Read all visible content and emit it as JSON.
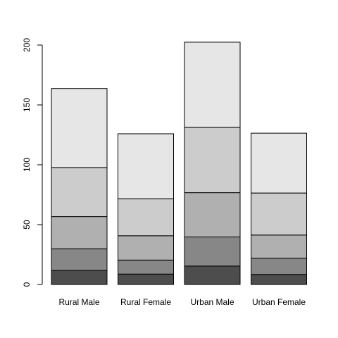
{
  "chart_data": {
    "type": "bar",
    "stacked": true,
    "categories": [
      "Rural Male",
      "Rural Female",
      "Urban Male",
      "Urban Female"
    ],
    "series": [
      {
        "values": [
          11.7,
          8.7,
          15.4,
          8.4
        ],
        "color": "#4d4d4d"
      },
      {
        "values": [
          18.1,
          11.7,
          24.3,
          13.6
        ],
        "color": "#878787"
      },
      {
        "values": [
          26.9,
          20.3,
          37.0,
          19.3
        ],
        "color": "#b0b0b0"
      },
      {
        "values": [
          41.0,
          30.9,
          54.6,
          35.1
        ],
        "color": "#cccccc"
      },
      {
        "values": [
          66.0,
          54.3,
          71.1,
          50.0
        ],
        "color": "#e6e6e6"
      }
    ],
    "ylim": [
      0,
      200
    ],
    "yticks": [
      0,
      50,
      100,
      150,
      200
    ],
    "grid": false,
    "legend": "none",
    "title": "",
    "xlabel": "",
    "ylabel": ""
  }
}
